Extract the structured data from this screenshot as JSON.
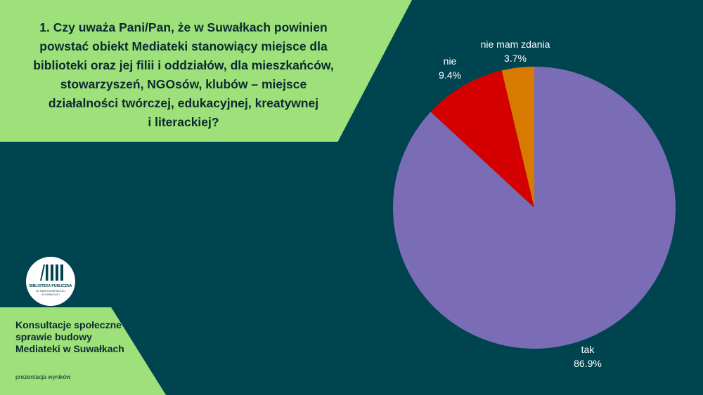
{
  "question": {
    "lines": [
      "1. Czy uważa Pani/Pan, że w Suwałkach powinien",
      "powstać obiekt Mediateki stanowiący miejsce dla",
      "biblioteki oraz jej filii i oddziałów, dla mieszkańców,",
      "stowarzyszeń, NGOsów, klubów – miejsce",
      "działalności twórczej, edukacyjnej, kreatywnej",
      "i literackiej?"
    ]
  },
  "logo": {
    "icon": "books-icon",
    "line1": "BIBLIOTEKA PUBLICZNA",
    "line2": "IM. MARII KONOPNICKIEJ",
    "line3": "W SUWAŁKACH"
  },
  "footer": {
    "title": "Konsultacje społeczne w sprawie budowy Mediateki w Suwałkach",
    "subtitle": "prezentacja wyników"
  },
  "colors": {
    "background": "#004450",
    "accent": "#9ee07a",
    "tak": "#7b6db5",
    "nie": "#d40000",
    "nie_mam_zdania": "#d97a00"
  },
  "chart_data": {
    "type": "pie",
    "slices": [
      {
        "name": "tak",
        "value": 86.9,
        "label": "86.9%",
        "color": "#7b6db5"
      },
      {
        "name": "nie",
        "value": 9.4,
        "label": "9.4%",
        "color": "#d40000"
      },
      {
        "name": "nie mam zdania",
        "value": 3.7,
        "label": "3.7%",
        "color": "#d97a00"
      }
    ]
  }
}
